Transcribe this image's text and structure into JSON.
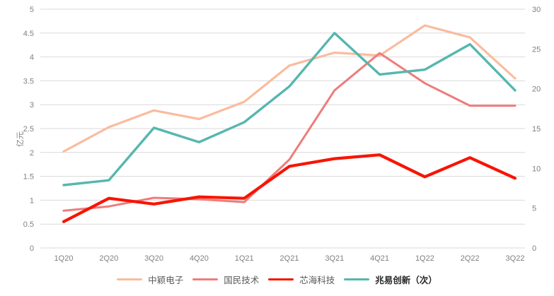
{
  "chart_data": {
    "type": "line",
    "title": "",
    "categories": [
      "1Q20",
      "2Q20",
      "3Q20",
      "4Q20",
      "1Q21",
      "2Q21",
      "3Q21",
      "4Q21",
      "1Q22",
      "2Q22",
      "3Q22"
    ],
    "series": [
      {
        "name": "中颖电子",
        "axis": "left",
        "color": "#F9BC9E",
        "line_width": 3.2,
        "legend_bold": false,
        "values": [
          2.02,
          2.53,
          2.88,
          2.7,
          3.06,
          3.82,
          4.09,
          4.03,
          4.66,
          4.41,
          3.55
        ]
      },
      {
        "name": "国民技术",
        "axis": "left",
        "color": "#EE7C7C",
        "line_width": 3.0,
        "legend_bold": false,
        "values": [
          0.78,
          0.87,
          1.05,
          1.02,
          0.96,
          1.85,
          3.3,
          4.08,
          3.45,
          2.98,
          2.98
        ]
      },
      {
        "name": "芯海科技",
        "axis": "left",
        "color": "#F81400",
        "line_width": 4.2,
        "legend_bold": false,
        "values": [
          0.55,
          1.04,
          0.92,
          1.07,
          1.04,
          1.71,
          1.87,
          1.95,
          1.49,
          1.89,
          1.46
        ]
      },
      {
        "name": "兆易创新（次）",
        "axis": "right",
        "color": "#55B7AE",
        "line_width": 3.4,
        "legend_bold": true,
        "values": [
          7.9,
          8.5,
          15.1,
          13.3,
          15.8,
          20.3,
          27.0,
          21.8,
          22.4,
          25.6,
          19.8
        ]
      }
    ],
    "ylabel_left": "亿元",
    "left_axis": {
      "min": 0,
      "max": 5,
      "tick_step": 0.5,
      "tick_labels": [
        "0",
        "0.5",
        "1",
        "1.5",
        "2",
        "2.5",
        "3",
        "3.5",
        "4",
        "4.5",
        "5"
      ]
    },
    "right_axis": {
      "min": 0,
      "max": 30,
      "tick_step": 5,
      "tick_labels": [
        "0",
        "5",
        "10",
        "15",
        "20",
        "25",
        "30"
      ]
    },
    "grid": true,
    "legend_position": "bottom"
  },
  "style": {
    "background": "#FFFFFF",
    "grid_color": "#D9D9D9",
    "tick_label_color": "#7F7F7F",
    "axis_title_color": "#7F7F7F",
    "legend_text_color": "#595959",
    "legend_bold_text_color": "#262626"
  }
}
